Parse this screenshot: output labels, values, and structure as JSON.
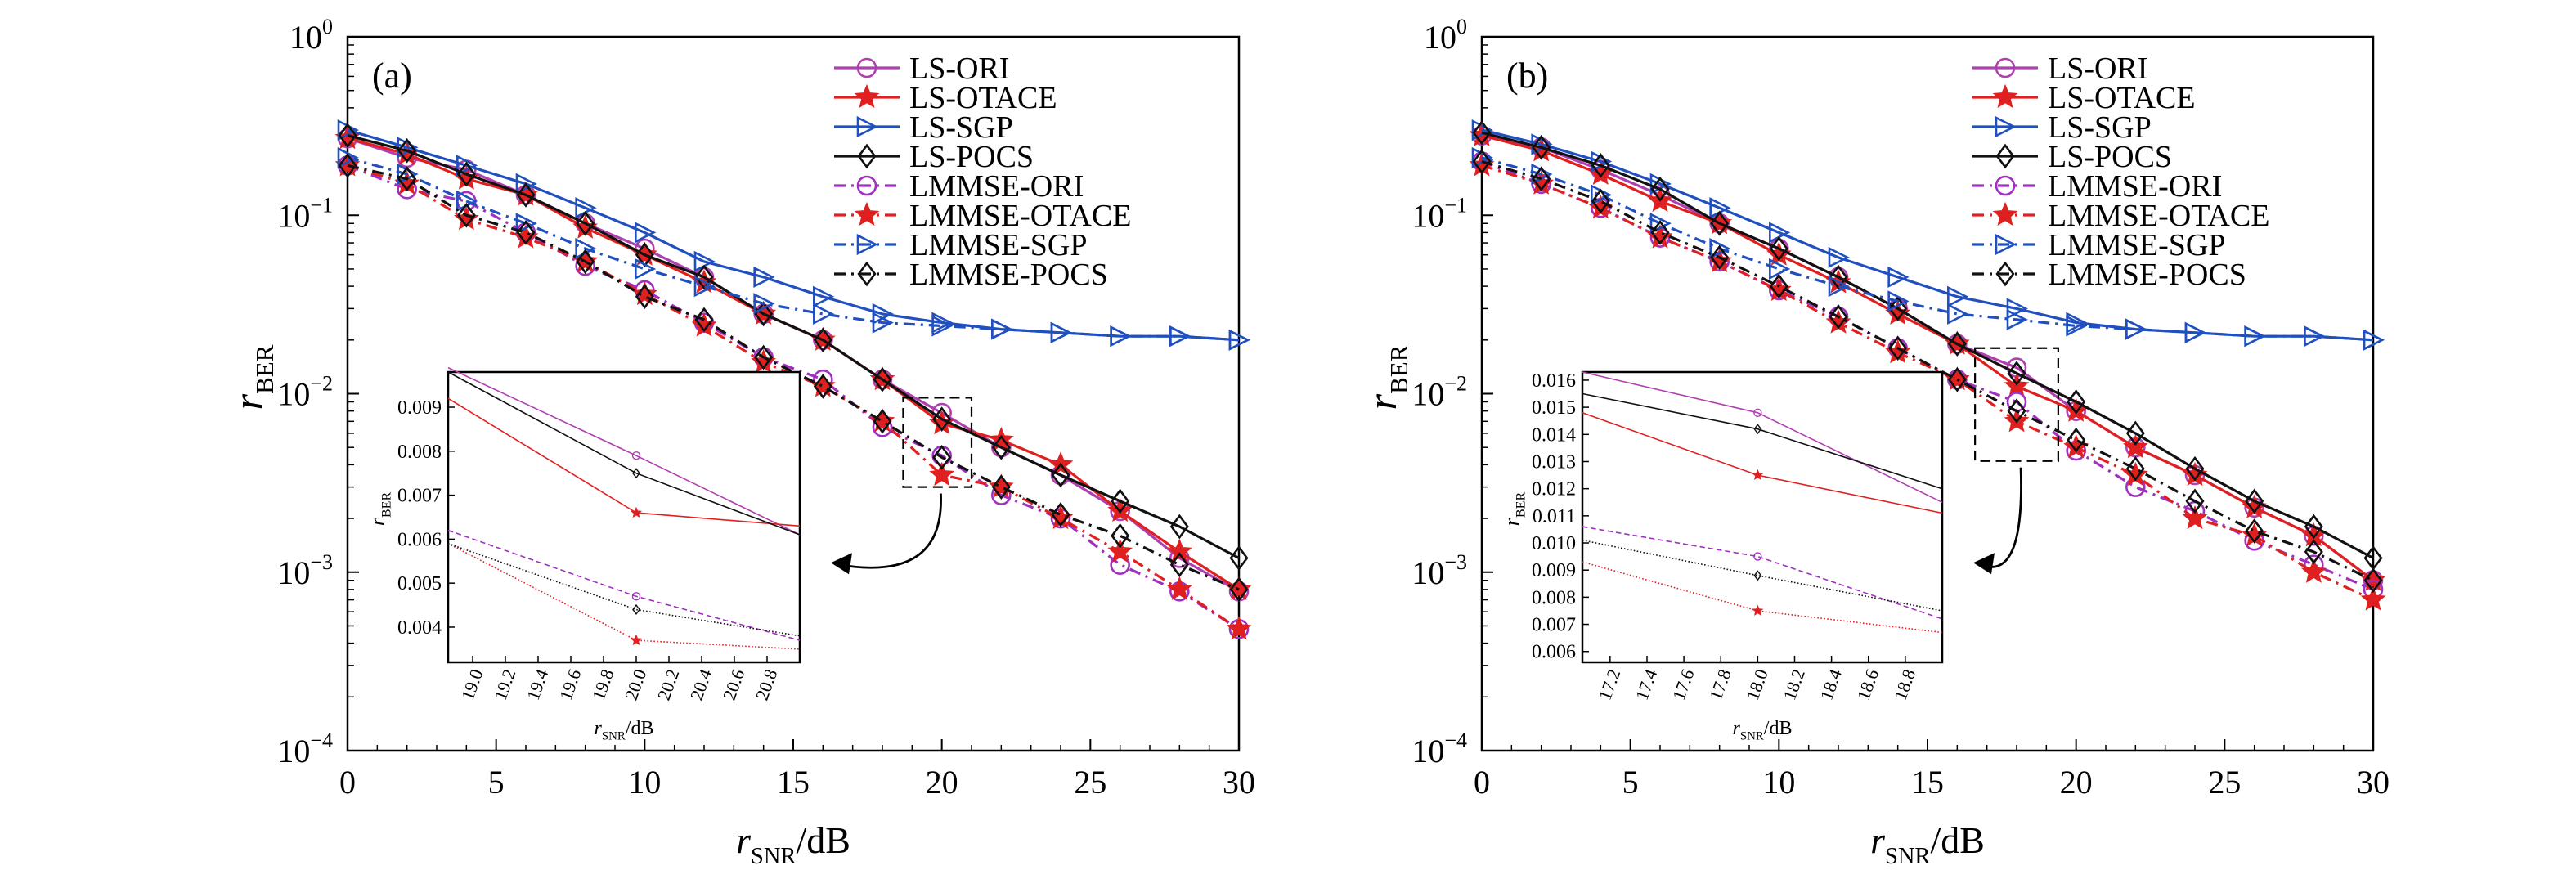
{
  "chart_data": [
    {
      "type": "line",
      "panel_label": "(a)",
      "xlabel": {
        "base": "r",
        "sub": "SNR",
        "suffix": "/dB"
      },
      "ylabel": {
        "base": "r",
        "sub": "BER"
      },
      "xlim": [
        0,
        30
      ],
      "ylim": [
        0.0001,
        1
      ],
      "yscale": "log",
      "xticks": [
        0,
        5,
        10,
        15,
        20,
        25,
        30
      ],
      "yticks": [
        {
          "value": 1,
          "base": "10",
          "exp": "0"
        },
        {
          "value": 0.1,
          "base": "10",
          "exp": "−1"
        },
        {
          "value": 0.01,
          "base": "10",
          "exp": "−2"
        },
        {
          "value": 0.001,
          "base": "10",
          "exp": "−3"
        },
        {
          "value": 0.0001,
          "base": "10",
          "exp": "−4"
        }
      ],
      "grid": false,
      "legend_position": "top-right",
      "x": [
        0,
        2,
        4,
        6,
        8,
        10,
        12,
        14,
        16,
        18,
        20,
        22,
        24,
        26,
        28,
        30
      ],
      "series": [
        {
          "name": "LS-ORI",
          "color": "#b040b0",
          "dash": "solid",
          "marker": "circle",
          "values": [
            0.27,
            0.21,
            0.18,
            0.13,
            0.09,
            0.065,
            0.045,
            0.028,
            0.02,
            0.012,
            0.0078,
            0.005,
            0.0035,
            0.0022,
            0.0012,
            0.00078
          ]
        },
        {
          "name": "LS-OTACE",
          "color": "#e02020",
          "dash": "solid",
          "marker": "star",
          "values": [
            0.27,
            0.22,
            0.16,
            0.13,
            0.085,
            0.06,
            0.042,
            0.028,
            0.02,
            0.012,
            0.0068,
            0.0055,
            0.004,
            0.0022,
            0.0013,
            0.0008
          ]
        },
        {
          "name": "LS-SGP",
          "color": "#2050c0",
          "dash": "solid",
          "marker": "triangle",
          "values": [
            0.3,
            0.24,
            0.19,
            0.15,
            0.11,
            0.08,
            0.055,
            0.045,
            0.035,
            0.028,
            0.025,
            0.023,
            0.022,
            0.021,
            0.021,
            0.02
          ]
        },
        {
          "name": "LS-POCS",
          "color": "#111111",
          "dash": "solid",
          "marker": "diamond",
          "values": [
            0.28,
            0.23,
            0.17,
            0.13,
            0.09,
            0.06,
            0.045,
            0.028,
            0.02,
            0.012,
            0.0072,
            0.005,
            0.0035,
            0.0025,
            0.0018,
            0.0012
          ]
        },
        {
          "name": "LMMSE-ORI",
          "color": "#a030c0",
          "dash": "dashdot",
          "marker": "circle",
          "values": [
            0.19,
            0.14,
            0.12,
            0.08,
            0.052,
            0.038,
            0.025,
            0.016,
            0.012,
            0.0065,
            0.0045,
            0.0027,
            0.002,
            0.0011,
            0.00078,
            0.00048
          ]
        },
        {
          "name": "LMMSE-OTACE",
          "color": "#e02020",
          "dash": "dashdot",
          "marker": "star",
          "values": [
            0.19,
            0.15,
            0.095,
            0.075,
            0.055,
            0.036,
            0.024,
            0.015,
            0.011,
            0.007,
            0.0035,
            0.003,
            0.002,
            0.0013,
            0.0008,
            0.00048
          ]
        },
        {
          "name": "LMMSE-SGP",
          "color": "#2050c0",
          "dash": "dashdot",
          "marker": "triangle",
          "values": [
            0.21,
            0.17,
            0.12,
            0.09,
            0.065,
            0.05,
            0.04,
            0.032,
            0.028,
            0.025,
            0.024,
            0.023,
            0.022,
            0.021,
            0.021,
            0.02
          ]
        },
        {
          "name": "LMMSE-POCS",
          "color": "#111111",
          "dash": "dashdot",
          "marker": "diamond",
          "values": [
            0.19,
            0.16,
            0.1,
            0.08,
            0.055,
            0.035,
            0.026,
            0.016,
            0.011,
            0.007,
            0.0044,
            0.003,
            0.0021,
            0.0016,
            0.0011,
            0.0008
          ]
        }
      ],
      "inset": {
        "xlim": [
          18.85,
          21
        ],
        "ylim": [
          0.0032,
          0.0098
        ],
        "xticks": [
          "19.0",
          "19.2",
          "19.4",
          "19.6",
          "19.8",
          "20.0",
          "20.2",
          "20.4",
          "20.6",
          "20.8"
        ],
        "yticks": [
          "0.009",
          "0.008",
          "0.007",
          "0.006",
          "0.005",
          "0.004"
        ],
        "xlabel": {
          "base": "r",
          "sub": "SNR",
          "suffix": "/dB"
        },
        "ylabel": {
          "base": "r",
          "sub": "BER"
        },
        "lines": [
          {
            "color": "#b040b0",
            "dash": "solid",
            "marker": "circle",
            "pts": [
              [
                18.85,
                0.0099
              ],
              [
                20,
                0.0079
              ],
              [
                21,
                0.0061
              ]
            ]
          },
          {
            "color": "#e02020",
            "dash": "solid",
            "marker": "star",
            "pts": [
              [
                18.85,
                0.0092
              ],
              [
                20,
                0.0066
              ],
              [
                21,
                0.0063
              ]
            ]
          },
          {
            "color": "#111111",
            "dash": "solid",
            "marker": "diamond",
            "pts": [
              [
                18.85,
                0.0098
              ],
              [
                20,
                0.0075
              ],
              [
                21,
                0.0061
              ]
            ]
          },
          {
            "color": "#a030c0",
            "dash": "dashed",
            "marker": "circle",
            "pts": [
              [
                18.85,
                0.0062
              ],
              [
                20,
                0.0047
              ],
              [
                21,
                0.0037
              ]
            ]
          },
          {
            "color": "#e02020",
            "dash": "dotted",
            "marker": "star",
            "pts": [
              [
                18.85,
                0.0059
              ],
              [
                20,
                0.0037
              ],
              [
                21,
                0.0035
              ]
            ]
          },
          {
            "color": "#111111",
            "dash": "dotted",
            "marker": "diamond",
            "pts": [
              [
                18.85,
                0.0059
              ],
              [
                20,
                0.0044
              ],
              [
                21,
                0.0038
              ]
            ]
          }
        ]
      },
      "zoom_box": {
        "x": [
          18.7,
          21.0
        ],
        "y": [
          0.003,
          0.0095
        ]
      }
    },
    {
      "type": "line",
      "panel_label": "(b)",
      "xlabel": {
        "base": "r",
        "sub": "SNR",
        "suffix": "/dB"
      },
      "ylabel": {
        "base": "r",
        "sub": "BER"
      },
      "xlim": [
        0,
        30
      ],
      "ylim": [
        0.0001,
        1
      ],
      "yscale": "log",
      "xticks": [
        0,
        5,
        10,
        15,
        20,
        25,
        30
      ],
      "yticks": [
        {
          "value": 1,
          "base": "10",
          "exp": "0"
        },
        {
          "value": 0.1,
          "base": "10",
          "exp": "−1"
        },
        {
          "value": 0.01,
          "base": "10",
          "exp": "−2"
        },
        {
          "value": 0.001,
          "base": "10",
          "exp": "−3"
        },
        {
          "value": 0.0001,
          "base": "10",
          "exp": "−4"
        }
      ],
      "grid": false,
      "legend_position": "top-right",
      "x": [
        0,
        2,
        4,
        6,
        8,
        10,
        12,
        14,
        16,
        18,
        20,
        22,
        24,
        26,
        28,
        30
      ],
      "series": [
        {
          "name": "LS-ORI",
          "color": "#b040b0",
          "dash": "solid",
          "marker": "circle",
          "values": [
            0.28,
            0.24,
            0.18,
            0.13,
            0.09,
            0.065,
            0.045,
            0.03,
            0.019,
            0.014,
            0.008,
            0.005,
            0.0035,
            0.0023,
            0.0016,
            0.0009
          ]
        },
        {
          "name": "LS-OTACE",
          "color": "#e02020",
          "dash": "solid",
          "marker": "star",
          "values": [
            0.28,
            0.23,
            0.17,
            0.12,
            0.09,
            0.06,
            0.042,
            0.028,
            0.019,
            0.011,
            0.008,
            0.005,
            0.0035,
            0.0023,
            0.0016,
            0.0009
          ]
        },
        {
          "name": "LS-SGP",
          "color": "#2050c0",
          "dash": "solid",
          "marker": "triangle",
          "values": [
            0.3,
            0.25,
            0.2,
            0.15,
            0.11,
            0.08,
            0.058,
            0.045,
            0.035,
            0.03,
            0.025,
            0.023,
            0.022,
            0.021,
            0.021,
            0.02
          ]
        },
        {
          "name": "LS-POCS",
          "color": "#111111",
          "dash": "solid",
          "marker": "diamond",
          "values": [
            0.29,
            0.24,
            0.19,
            0.14,
            0.09,
            0.065,
            0.045,
            0.03,
            0.019,
            0.013,
            0.009,
            0.006,
            0.0038,
            0.0025,
            0.0018,
            0.0012
          ]
        },
        {
          "name": "LMMSE-ORI",
          "color": "#a030c0",
          "dash": "dashdot",
          "marker": "circle",
          "values": [
            0.2,
            0.15,
            0.11,
            0.075,
            0.055,
            0.038,
            0.027,
            0.018,
            0.012,
            0.009,
            0.0048,
            0.003,
            0.0022,
            0.0015,
            0.0011,
            0.0008
          ]
        },
        {
          "name": "LMMSE-OTACE",
          "color": "#e02020",
          "dash": "dashdot",
          "marker": "star",
          "values": [
            0.19,
            0.15,
            0.11,
            0.075,
            0.055,
            0.038,
            0.025,
            0.017,
            0.012,
            0.007,
            0.005,
            0.0035,
            0.002,
            0.0016,
            0.001,
            0.0007
          ]
        },
        {
          "name": "LMMSE-SGP",
          "color": "#2050c0",
          "dash": "dashdot",
          "marker": "triangle",
          "values": [
            0.21,
            0.17,
            0.13,
            0.09,
            0.065,
            0.05,
            0.04,
            0.033,
            0.028,
            0.026,
            0.024,
            0.023,
            0.022,
            0.021,
            0.021,
            0.02
          ]
        },
        {
          "name": "LMMSE-POCS",
          "color": "#111111",
          "dash": "dashdot",
          "marker": "diamond",
          "values": [
            0.2,
            0.16,
            0.12,
            0.08,
            0.058,
            0.04,
            0.027,
            0.018,
            0.012,
            0.008,
            0.0055,
            0.0038,
            0.0025,
            0.0017,
            0.0013,
            0.0009
          ]
        }
      ],
      "inset": {
        "xlim": [
          17.05,
          19.0
        ],
        "ylim": [
          0.0056,
          0.0163
        ],
        "xticks": [
          "17.2",
          "17.4",
          "17.6",
          "17.8",
          "18.0",
          "18.2",
          "18.4",
          "18.6",
          "18.8"
        ],
        "yticks": [
          "0.016",
          "0.015",
          "0.014",
          "0.013",
          "0.012",
          "0.011",
          "0.010",
          "0.009",
          "0.008",
          "0.007",
          "0.006"
        ],
        "xlabel": {
          "base": "r",
          "sub": "SNR",
          "suffix": "/dB"
        },
        "ylabel": {
          "base": "r",
          "sub": "BER"
        },
        "lines": [
          {
            "color": "#b040b0",
            "dash": "solid",
            "marker": "circle",
            "pts": [
              [
                17.05,
                0.0163
              ],
              [
                18,
                0.0148
              ],
              [
                19,
                0.0115
              ]
            ]
          },
          {
            "color": "#e02020",
            "dash": "solid",
            "marker": "star",
            "pts": [
              [
                17.05,
                0.0148
              ],
              [
                18,
                0.0125
              ],
              [
                19,
                0.0111
              ]
            ]
          },
          {
            "color": "#111111",
            "dash": "solid",
            "marker": "diamond",
            "pts": [
              [
                17.05,
                0.0155
              ],
              [
                18,
                0.0142
              ],
              [
                19,
                0.012
              ]
            ]
          },
          {
            "color": "#a030c0",
            "dash": "dashed",
            "marker": "circle",
            "pts": [
              [
                17.05,
                0.0106
              ],
              [
                18,
                0.0095
              ],
              [
                19,
                0.0072
              ]
            ]
          },
          {
            "color": "#e02020",
            "dash": "dotted",
            "marker": "star",
            "pts": [
              [
                17.05,
                0.0093
              ],
              [
                18,
                0.0075
              ],
              [
                19,
                0.0067
              ]
            ]
          },
          {
            "color": "#111111",
            "dash": "dotted",
            "marker": "diamond",
            "pts": [
              [
                17.05,
                0.0101
              ],
              [
                18,
                0.0088
              ],
              [
                19,
                0.0075
              ]
            ]
          }
        ]
      },
      "zoom_box": {
        "x": [
          16.6,
          19.4
        ],
        "y": [
          0.0042,
          0.018
        ]
      }
    }
  ]
}
